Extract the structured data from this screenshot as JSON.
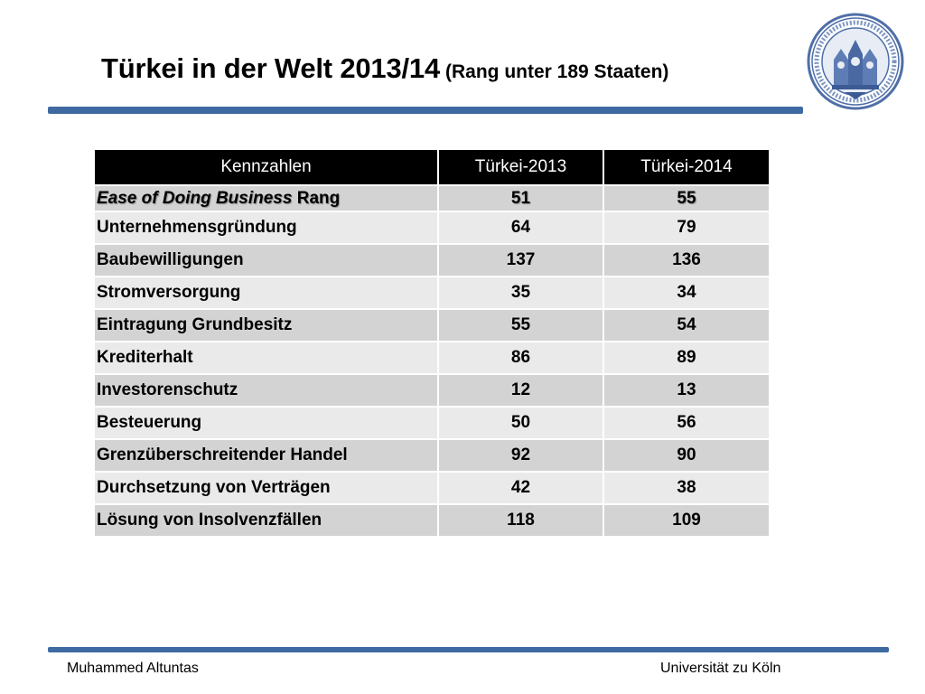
{
  "header": {
    "title": "Türkei in der Welt 2013/14",
    "subtitle": "(Rang unter 189 Staaten)",
    "seal_icon": "university-seal-icon"
  },
  "table": {
    "headers": [
      "Kennzahlen",
      "Türkei-2013",
      "Türkei-2014"
    ],
    "first_row": {
      "label_italic": "Ease of Doing Business",
      "label_rest": "Rang",
      "v2013": "51",
      "v2014": "55"
    },
    "rows": [
      {
        "label": "Unternehmensgründung",
        "v2013": "64",
        "v2014": "79"
      },
      {
        "label": "Baubewilligungen",
        "v2013": "137",
        "v2014": "136"
      },
      {
        "label": "Stromversorgung",
        "v2013": "35",
        "v2014": "34"
      },
      {
        "label": "Eintragung Grundbesitz",
        "v2013": "55",
        "v2014": "54"
      },
      {
        "label": "Krediterhalt",
        "v2013": "86",
        "v2014": "89"
      },
      {
        "label": "Investorenschutz",
        "v2013": "12",
        "v2014": "13"
      },
      {
        "label": "Besteuerung",
        "v2013": "50",
        "v2014": "56"
      },
      {
        "label": "Grenzüberschreitender Handel",
        "v2013": "92",
        "v2014": "90"
      },
      {
        "label": "Durchsetzung von Verträgen",
        "v2013": "42",
        "v2014": "38"
      },
      {
        "label": "Lösung von Insolvenzfällen",
        "v2013": "118",
        "v2014": "109"
      }
    ]
  },
  "footer": {
    "author": "Muhammed Altuntas",
    "institution": "Universität zu Köln"
  },
  "colors": {
    "accent_bar": "#3e6aa1",
    "header_bg": "#000000",
    "row_dark": "#d3d3d3",
    "row_light": "#eaeaea"
  }
}
